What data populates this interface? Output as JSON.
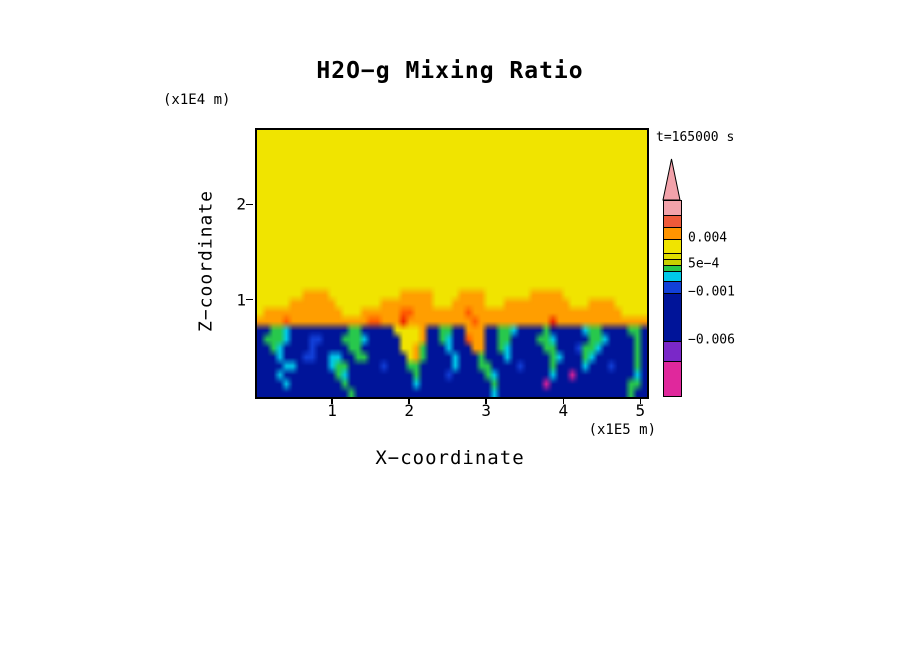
{
  "chart_data": {
    "type": "heatmap",
    "title": "H2O−g Mixing Ratio",
    "timestamp": "t=165000 s",
    "xlabel": "X−coordinate",
    "xunit": "(x1E5 m)",
    "x_range": [
      0,
      5.06
    ],
    "zlabel": "Z−coordinate",
    "zunit": "(x1E4 m)",
    "z_range": [
      0,
      2.8
    ],
    "x_ticks": [
      {
        "value": 1,
        "label": "1"
      },
      {
        "value": 2,
        "label": "2"
      },
      {
        "value": 3,
        "label": "3"
      },
      {
        "value": 4,
        "label": "4"
      },
      {
        "value": 5,
        "label": "5"
      }
    ],
    "z_ticks": [
      {
        "value": 1,
        "label": "1"
      },
      {
        "value": 2,
        "label": "2"
      }
    ],
    "colorbar_tip_color": "#f2a2aa",
    "colorbar_segments": [
      {
        "color": "#f2a2aa",
        "h": 14
      },
      {
        "color": "#ef5a3a",
        "h": 12
      },
      {
        "color": "#ff9400",
        "h": 12
      },
      {
        "color": "#f0e400",
        "h": 14
      },
      {
        "color": "#e0dc00",
        "h": 6
      },
      {
        "color": "#c8d000",
        "h": 6
      },
      {
        "color": "#28c84c",
        "h": 6
      },
      {
        "color": "#00c8e8",
        "h": 10
      },
      {
        "color": "#1240d8",
        "h": 12
      },
      {
        "color": "#001499",
        "h": 48
      },
      {
        "color": "#7a28c8",
        "h": 20
      },
      {
        "color": "#e0289c",
        "h": 35
      }
    ],
    "colorbar_labels": [
      {
        "text": "0.004",
        "offset": 38
      },
      {
        "text": "5e−4",
        "offset": 64
      },
      {
        "text": "−0.001",
        "offset": 92
      },
      {
        "text": "−0.006",
        "offset": 140
      }
    ],
    "grid": {
      "cols": 60,
      "palette": {
        "Y": {
          "color": "#f0e400",
          "value": 0.002
        },
        "O": {
          "color": "#ff9e00",
          "value": 0.004
        },
        "o": {
          "color": "#ff5a00",
          "value": 0.005
        },
        "r": {
          "color": "#ee2200",
          "value": 0.006
        },
        "G": {
          "color": "#28c84c",
          "value": 0.0
        },
        "C": {
          "color": "#00c8e8",
          "value": -0.0005
        },
        "B": {
          "color": "#1240d8",
          "value": -0.002
        },
        "N": {
          "color": "#001499",
          "value": -0.004
        },
        "m": {
          "color": "#dd2299",
          "value": -0.007
        }
      },
      "rows": [
        "Y",
        "Y",
        "Y",
        "Y",
        "Y",
        "Y",
        "Y",
        "Y",
        "Y",
        "Y",
        "Y",
        "Y",
        "Y",
        "Y",
        "Y",
        "Y",
        "Y",
        "Y",
        [
          "YYYYYYYOOO",
          "OYYYYYYYYY",
          "YYOOOOOYYY",
          "YOOOOYYYYY",
          "YYOOOOOYYY",
          "YYYYYYYYYY"
        ],
        [
          "YYYYYOOOOO",
          "OOYYYYYYYO",
          "OOOOOOOYYY",
          "OOOOOYYYOO",
          "OOOOOOOOYY",
          "YOOOOYYYYY"
        ],
        [
          "YOOOOOOOOO",
          "OOOYYYOOOO",
          "OOooOOOOOO",
          "OOoOOOOOOO",
          "OOOOOOOOOO",
          "OOOOOOYYYY"
        ],
        [
          "OOOOoOOOOO",
          "OOOOOOOooO",
          "OOrOOOOOOO",
          "OOOoOOOOOO",
          "OOOOOrOOOO",
          "OOOOOOOOOO"
        ],
        [
          "NNGGCNNNNN",
          "NNNNGGNNNN",
          "NYYYYONNGG",
          "NNOOONNGGC",
          "NNNNGNNNNN",
          "CGGNNNNGGN"
        ],
        [
          "NGGGCNNNBB",
          "NNNGGGCNNN",
          "NNYYYONNGC",
          "NNoOONNGGN",
          "NNNGGCNNNN",
          "NGGCNNNNGN"
        ],
        [
          "NNGCNNNNBN",
          "NNNNGGNNNN",
          "NNYYOGNNNC",
          "NNNOONNGCN",
          "NNNNGGNNNB",
          "GGCNNNNNGN"
        ],
        [
          "NNNCNNNBBN",
          "NCCNNGGNNN",
          "NNNYOGNNNN",
          "CNNNGNNNCN",
          "NNNNNGCNNN",
          "GCNNNNNNGN"
        ],
        [
          "NNNNCCNNNN",
          "NCGGNNNNNB",
          "NNNGGNNNNN",
          "CNNNGGNNNN",
          "BNNNNGNNNN",
          "CNNNBNNNGN"
        ],
        [
          "NNNCNNNNNN",
          "NNGCNNNNNN",
          "NNNNGNNNNB",
          "NNNNNGCNNN",
          "NNNNNCNNmN",
          "NNNNNNNNCN"
        ],
        [
          "NNNNCNNNNN",
          "NNNGNNNNNN",
          "NNNNCNNNNN",
          "NNNNNNGNNN",
          "NNNNmNNNNN",
          "NNNNNNNGGN"
        ],
        [
          "NNNNNNNNNN",
          "NNNNGNNNNN",
          "NNNNNNNNNN",
          "NNNNNNCNNN",
          "NNNNNNNNNN",
          "NNNNNNNGNN"
        ]
      ]
    }
  }
}
